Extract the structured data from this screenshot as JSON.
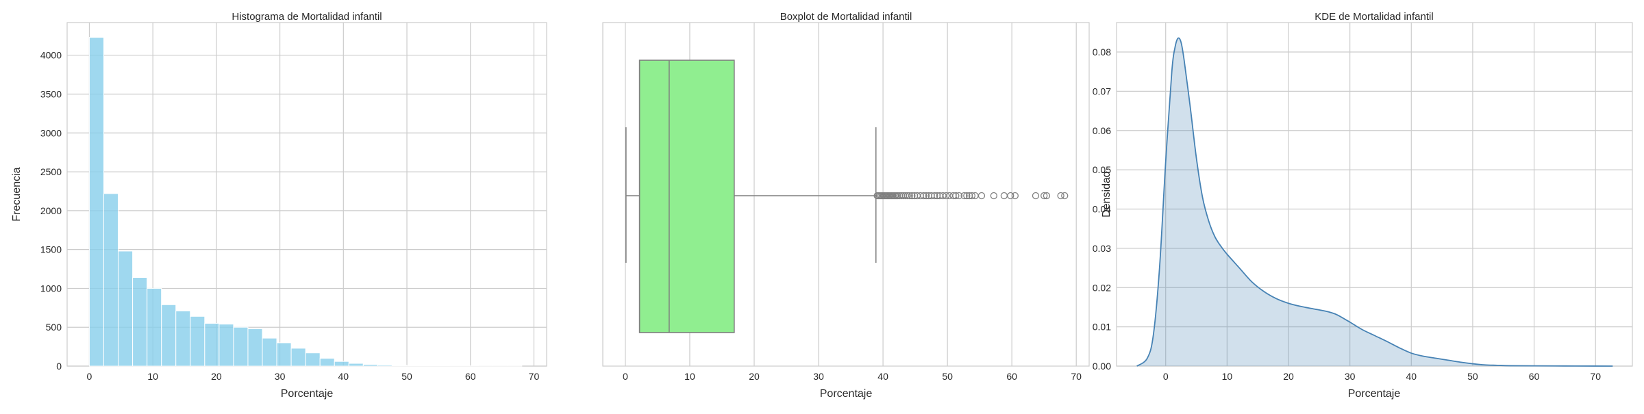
{
  "chart_data": [
    {
      "type": "histogram",
      "title": "Histograma de Mortalidad infantil",
      "xlabel": "Porcentaje",
      "ylabel": "Frecuencia",
      "xlim": [
        -3.5,
        72
      ],
      "ylim": [
        0,
        4420
      ],
      "grid": true,
      "color": "#87ceeb",
      "xticks": [
        0,
        10,
        20,
        30,
        40,
        50,
        60,
        70
      ],
      "yticks": [
        0,
        500,
        1000,
        1500,
        2000,
        2500,
        3000,
        3500,
        4000
      ],
      "bin_edges": [
        0.0,
        2.27,
        4.54,
        6.81,
        9.08,
        11.35,
        13.62,
        15.89,
        18.16,
        20.43,
        22.7,
        24.97,
        27.24,
        29.51,
        31.78,
        34.05,
        36.32,
        38.59,
        40.86,
        43.13,
        45.4,
        47.67,
        49.94,
        52.21,
        54.48,
        56.75,
        59.02,
        61.29,
        63.56,
        65.83,
        68.1
      ],
      "counts": [
        4230,
        2220,
        1480,
        1140,
        1000,
        790,
        710,
        640,
        550,
        540,
        500,
        480,
        360,
        300,
        230,
        170,
        100,
        60,
        35,
        22,
        14,
        9,
        7,
        5,
        4,
        3,
        3,
        2,
        2,
        2
      ]
    },
    {
      "type": "boxplot",
      "title": "Boxplot de Mortalidad infantil",
      "xlabel": "Porcentaje",
      "xlim": [
        -3.5,
        72
      ],
      "grid": true,
      "color": "#90ee90",
      "xticks": [
        0,
        10,
        20,
        30,
        40,
        50,
        60,
        70
      ],
      "whisker_low": 0.1,
      "q1": 2.2,
      "median": 6.8,
      "q3": 16.9,
      "whisker_high": 38.9,
      "outliers": [
        39.1,
        39.3,
        39.5,
        39.7,
        39.9,
        40.1,
        40.3,
        40.5,
        40.7,
        40.9,
        41.1,
        41.3,
        41.5,
        41.7,
        41.9,
        42.1,
        42.3,
        42.6,
        42.9,
        43.2,
        43.5,
        43.8,
        44.1,
        44.5,
        44.9,
        45.3,
        45.8,
        46.3,
        46.7,
        47.1,
        47.5,
        48.0,
        48.4,
        48.8,
        49.3,
        49.8,
        50.3,
        50.9,
        51.3,
        51.8,
        52.6,
        53.0,
        53.4,
        53.8,
        54.3,
        55.3,
        57.2,
        58.8,
        59.8,
        60.5,
        63.7,
        65.0,
        65.4,
        67.6,
        68.2
      ]
    },
    {
      "type": "kde",
      "title": "KDE de Mortalidad infantil",
      "xlabel": "Porcentaje",
      "ylabel": "Densidad",
      "xlim": [
        -8,
        76
      ],
      "ylim": [
        0,
        0.0875
      ],
      "grid": true,
      "color": "#4682b4",
      "xticks": [
        0,
        10,
        20,
        30,
        40,
        50,
        60,
        70
      ],
      "yticks": [
        "0.00",
        "0.01",
        "0.02",
        "0.03",
        "0.04",
        "0.05",
        "0.06",
        "0.07",
        "0.08"
      ],
      "x": [
        -4.7,
        -3.0,
        -2.0,
        -1.0,
        0.0,
        1.0,
        1.5,
        2.0,
        2.5,
        3.0,
        4.0,
        5.0,
        6.0,
        7.0,
        8.0,
        9.0,
        10.0,
        12.0,
        14.0,
        16.0,
        18.0,
        20.0,
        22.0,
        24.0,
        26.0,
        27.0,
        28.0,
        30.0,
        32.0,
        34.0,
        36.0,
        38.0,
        40.0,
        42.0,
        44.0,
        46.0,
        48.0,
        50.0,
        52.0,
        54.0,
        56.0,
        60.0,
        65.0,
        70.0,
        72.8
      ],
      "y": [
        0.0,
        0.002,
        0.008,
        0.025,
        0.052,
        0.075,
        0.081,
        0.0835,
        0.0825,
        0.078,
        0.066,
        0.053,
        0.043,
        0.037,
        0.033,
        0.0305,
        0.0285,
        0.025,
        0.0215,
        0.019,
        0.0172,
        0.016,
        0.0152,
        0.0146,
        0.014,
        0.0136,
        0.013,
        0.0112,
        0.0093,
        0.0078,
        0.0063,
        0.0047,
        0.0033,
        0.0025,
        0.002,
        0.0015,
        0.001,
        0.0006,
        0.0003,
        0.0002,
        0.0001,
        6e-05,
        3e-05,
        1e-05,
        0.0
      ]
    }
  ]
}
